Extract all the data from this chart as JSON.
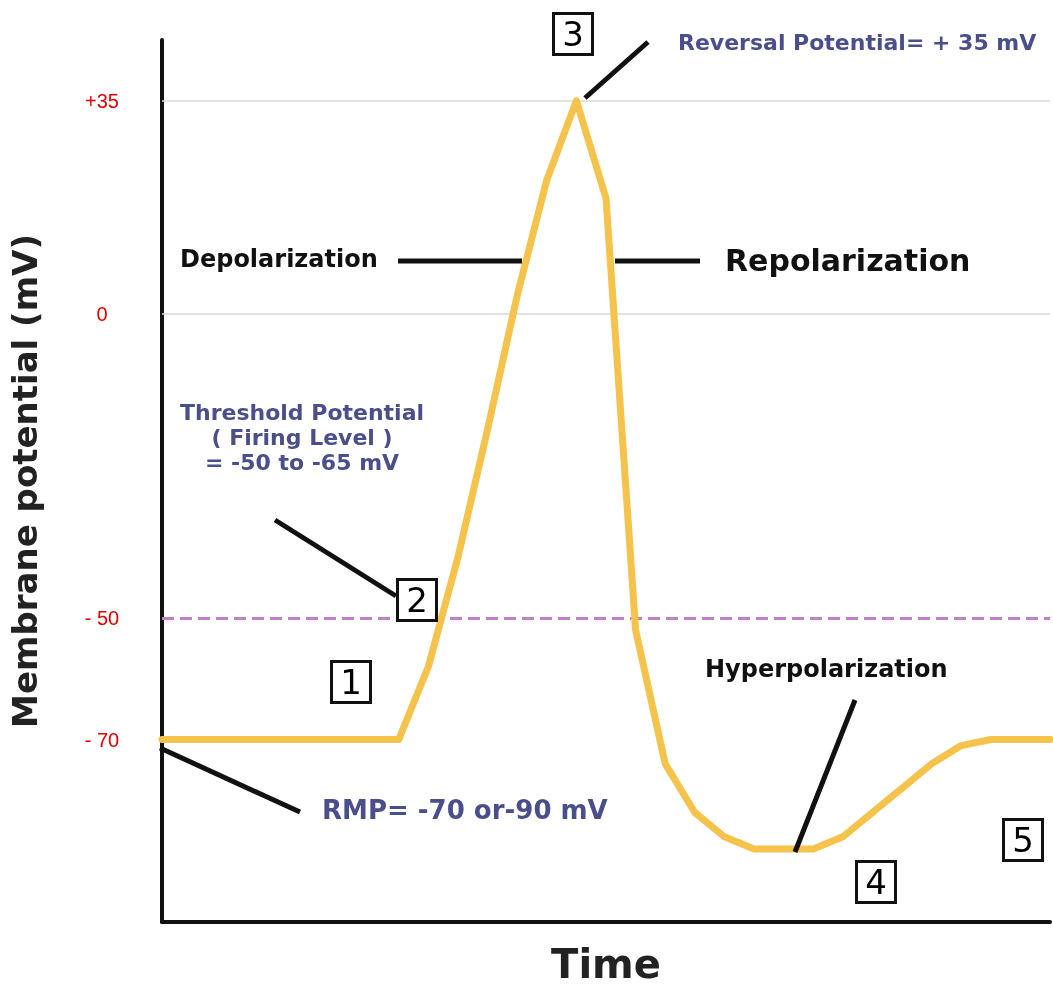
{
  "chart_data": {
    "type": "line",
    "xlabel": "Time",
    "ylabel": "Membrane potential (mV)",
    "categories": [
      null,
      null,
      null,
      null,
      null,
      null,
      null,
      null,
      null,
      null,
      null,
      null,
      null,
      null,
      null,
      null,
      null,
      null,
      null,
      null,
      null,
      null,
      null,
      null,
      null,
      null,
      null,
      null,
      null,
      null,
      null
    ],
    "series": [
      {
        "color": "#f5c24c",
        "values": [
          -70,
          -70,
          -70,
          -70,
          -70,
          -70,
          -70,
          -70,
          -70,
          -58,
          -40,
          -19,
          3,
          22,
          35,
          19,
          -52,
          -74,
          -82,
          -86,
          -88,
          -88,
          -88,
          -86,
          -82,
          -78,
          -74,
          -71,
          -70,
          -70,
          -70
        ]
      }
    ],
    "ylim": [
      -100,
      45
    ],
    "yticks": [
      {
        "value": 35,
        "label": "+35"
      },
      0,
      {
        "value": -50,
        "label": "- 50"
      },
      {
        "value": -70,
        "label": "- 70"
      }
    ],
    "grid": false,
    "ref_lines": [
      {
        "axis": "y",
        "value": 35,
        "color": "#d9d9d9",
        "line_style": "solid"
      },
      {
        "axis": "y",
        "value": 0,
        "color": "#d9d9d9",
        "line_style": "solid"
      },
      {
        "axis": "y",
        "value": -50,
        "color": "#c080c8",
        "line_style": "dashed"
      }
    ],
    "annotations": [
      "Reversal Potential= + 35 mV",
      "Depolarization",
      "Repolarization",
      "Threshold Potential\n( Firing Level )\n= -50 to -65 mV",
      "Hyperpolarization",
      "RMP= -70 or-90 mV",
      "1",
      "2",
      "3",
      "4",
      "5"
    ]
  }
}
